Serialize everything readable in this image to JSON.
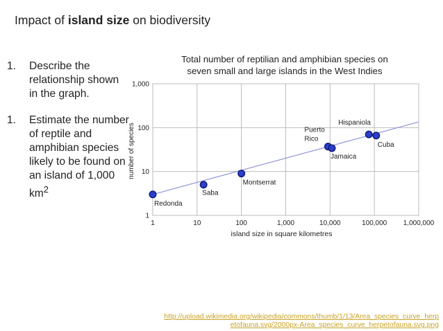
{
  "slide": {
    "title_prefix": "Impact of ",
    "title_bold": "island size",
    "title_suffix": " on biodiversity",
    "questions": [
      {
        "number": "1.",
        "text": "Describe the relationship shown in the graph."
      },
      {
        "number": "1.",
        "text": "Estimate the number of reptile and amphibian species likely to be found on an island of 1,000 km",
        "sup": "2"
      }
    ],
    "source_line1": "http://upload.wikimedia.org/wikipedia/commons/thumb/1/13/Area_species_curve_herp",
    "source_line2": "etofauna.svg/2000px-Area_species_curve_herpetofauna.svg.png"
  },
  "chart_data": {
    "type": "scatter",
    "title_line1": "Total number of reptilian and amphibian species on",
    "title_line2": "seven small and large islands in the West Indies",
    "xlabel": "island size in square kilometres",
    "ylabel": "number of species",
    "x_scale": "log",
    "y_scale": "log",
    "xlim": [
      1,
      1000000
    ],
    "ylim": [
      1,
      1000
    ],
    "x_ticks": [
      {
        "value": 1,
        "label": "1"
      },
      {
        "value": 10,
        "label": "10"
      },
      {
        "value": 100,
        "label": "100"
      },
      {
        "value": 1000,
        "label": "1,000"
      },
      {
        "value": 10000,
        "label": "10,000"
      },
      {
        "value": 100000,
        "label": "100,000"
      },
      {
        "value": 1000000,
        "label": "1,000,000"
      }
    ],
    "y_ticks": [
      {
        "value": 1,
        "label": "1"
      },
      {
        "value": 10,
        "label": "10"
      },
      {
        "value": 100,
        "label": "100"
      },
      {
        "value": 1000,
        "label": "1,000"
      }
    ],
    "grid": true,
    "points": [
      {
        "name": "Redonda",
        "x": 1,
        "y": 3,
        "label_pos": "below-right"
      },
      {
        "name": "Saba",
        "x": 14,
        "y": 5,
        "label_pos": "below"
      },
      {
        "name": "Montserrat",
        "x": 100,
        "y": 9,
        "label_pos": "below-right"
      },
      {
        "name": "Puerto Rico",
        "x": 9000,
        "y": 37,
        "label_pos": "above-left"
      },
      {
        "name": "Jamaica",
        "x": 11000,
        "y": 34,
        "label_pos": "below"
      },
      {
        "name": "Hispaniola",
        "x": 75000,
        "y": 70,
        "label_pos": "above-left"
      },
      {
        "name": "Cuba",
        "x": 110000,
        "y": 66,
        "label_pos": "below-right"
      }
    ],
    "trend_line": {
      "x": [
        1,
        1000000
      ],
      "y": [
        3,
        135
      ]
    },
    "colors": {
      "point": "#2b3fc8",
      "point_edge": "#0d1a7a",
      "trend": "#8f95d6",
      "grid": "#bbbbbb",
      "frame": "#888888"
    }
  }
}
